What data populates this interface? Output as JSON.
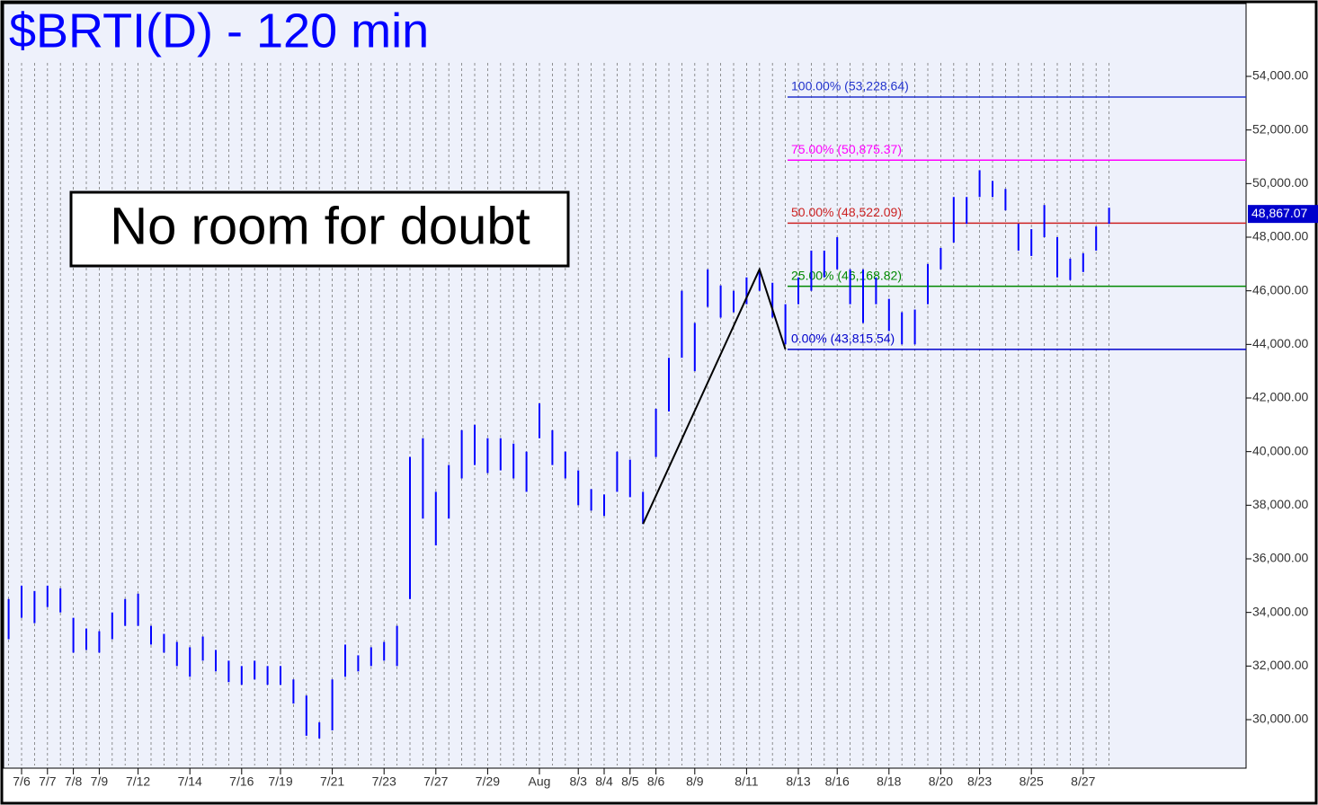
{
  "chart_data": {
    "type": "range_bar",
    "title": "$BRTI(D) - 120 min",
    "annotation": "No room for doubt",
    "color": "#0000ff",
    "categories": [
      null,
      "7/6",
      null,
      "7/7",
      null,
      "7/8",
      null,
      "7/9",
      null,
      null,
      "7/12",
      null,
      null,
      null,
      "7/14",
      null,
      null,
      null,
      "7/16",
      null,
      null,
      "7/19",
      null,
      null,
      null,
      "7/21",
      null,
      null,
      null,
      "7/23",
      null,
      null,
      null,
      "7/27",
      null,
      null,
      null,
      "7/29",
      null,
      null,
      null,
      "Aug",
      null,
      null,
      "8/3",
      null,
      "8/4",
      null,
      "8/5",
      null,
      "8/6",
      null,
      null,
      "8/9",
      null,
      null,
      null,
      "8/11",
      null,
      null,
      null,
      "8/13",
      null,
      null,
      "8/16",
      null,
      null,
      null,
      "8/18",
      null,
      null,
      null,
      "8/20",
      null,
      null,
      "8/23",
      null,
      null,
      null,
      "8/25",
      null,
      null,
      null,
      "8/27",
      null,
      null
    ],
    "high": [
      34500,
      35000,
      34800,
      35000,
      34900,
      33800,
      33400,
      33300,
      34000,
      34500,
      34700,
      33500,
      33200,
      32900,
      32700,
      33100,
      32600,
      32200,
      32000,
      32200,
      32000,
      32000,
      31500,
      30900,
      29900,
      31500,
      32800,
      32400,
      32700,
      32900,
      33500,
      39800,
      40500,
      38500,
      39500,
      40800,
      41000,
      40500,
      40500,
      40300,
      40000,
      41800,
      40800,
      40000,
      39300,
      38600,
      38400,
      40000,
      39700,
      38500,
      41600,
      43500,
      46000,
      44800,
      46800,
      46200,
      46000,
      46500,
      46800,
      46300,
      45500,
      46500,
      47500,
      47500,
      48000,
      46800,
      46800,
      46500,
      45700,
      45200,
      45300,
      47000,
      47600,
      49500,
      49500,
      50500,
      50100,
      49800,
      48500,
      48300,
      49200,
      48000,
      47200,
      47400,
      48400,
      49100
    ],
    "low": [
      33000,
      33800,
      33600,
      34200,
      34000,
      32500,
      32600,
      32500,
      33000,
      33500,
      33500,
      32800,
      32500,
      32000,
      31600,
      32200,
      31800,
      31400,
      31300,
      31500,
      31300,
      31300,
      30600,
      29400,
      29300,
      29600,
      31600,
      31800,
      32000,
      32200,
      32000,
      34500,
      37500,
      36500,
      37500,
      39000,
      39500,
      39200,
      39300,
      39000,
      38500,
      40500,
      39500,
      39000,
      38000,
      37800,
      37600,
      38500,
      38300,
      37300,
      39800,
      41500,
      43500,
      43000,
      45400,
      45000,
      45200,
      45500,
      46000,
      45000,
      44000,
      45500,
      46000,
      46500,
      46800,
      45500,
      44800,
      45500,
      44500,
      44000,
      44000,
      45500,
      46800,
      47800,
      48500,
      49500,
      49500,
      49000,
      47500,
      47300,
      48000,
      46500,
      46400,
      46700,
      47500,
      48500
    ],
    "trend_line": {
      "x": [
        49,
        58,
        60
      ],
      "values": [
        37300,
        46800,
        43815.54
      ]
    },
    "levels": [
      {
        "label": "100.00% (53,228.64)",
        "value": 53228.64,
        "color": "#2233cc"
      },
      {
        "label": "75.00% (50,875.37)",
        "value": 50875.37,
        "color": "#ff00ff"
      },
      {
        "label": "50.00% (48,522.09)",
        "value": 48522.09,
        "color": "#cc2222"
      },
      {
        "label": "25.00% (46,168.82)",
        "value": 46168.82,
        "color": "#008800"
      },
      {
        "label": "0.00% (43,815.54)",
        "value": 43815.54,
        "color": "#0000cc"
      }
    ],
    "last_price": {
      "value": 48867.07,
      "label": "48,867.07"
    },
    "ylim": [
      28190,
      56682
    ],
    "yticks": [
      {
        "value": 30000,
        "label": "30,000.00"
      },
      {
        "value": 32000,
        "label": "32,000.00"
      },
      {
        "value": 34000,
        "label": "34,000.00"
      },
      {
        "value": 36000,
        "label": "36,000.00"
      },
      {
        "value": 38000,
        "label": "38,000.00"
      },
      {
        "value": 40000,
        "label": "40,000.00"
      },
      {
        "value": 42000,
        "label": "42,000.00"
      },
      {
        "value": 44000,
        "label": "44,000.00"
      },
      {
        "value": 46000,
        "label": "46,000.00"
      },
      {
        "value": 48000,
        "label": "48,000.00"
      },
      {
        "value": 50000,
        "label": "50,000.00"
      },
      {
        "value": 52000,
        "label": "52,000.00"
      },
      {
        "value": 54000,
        "label": "54,000.00"
      }
    ]
  }
}
